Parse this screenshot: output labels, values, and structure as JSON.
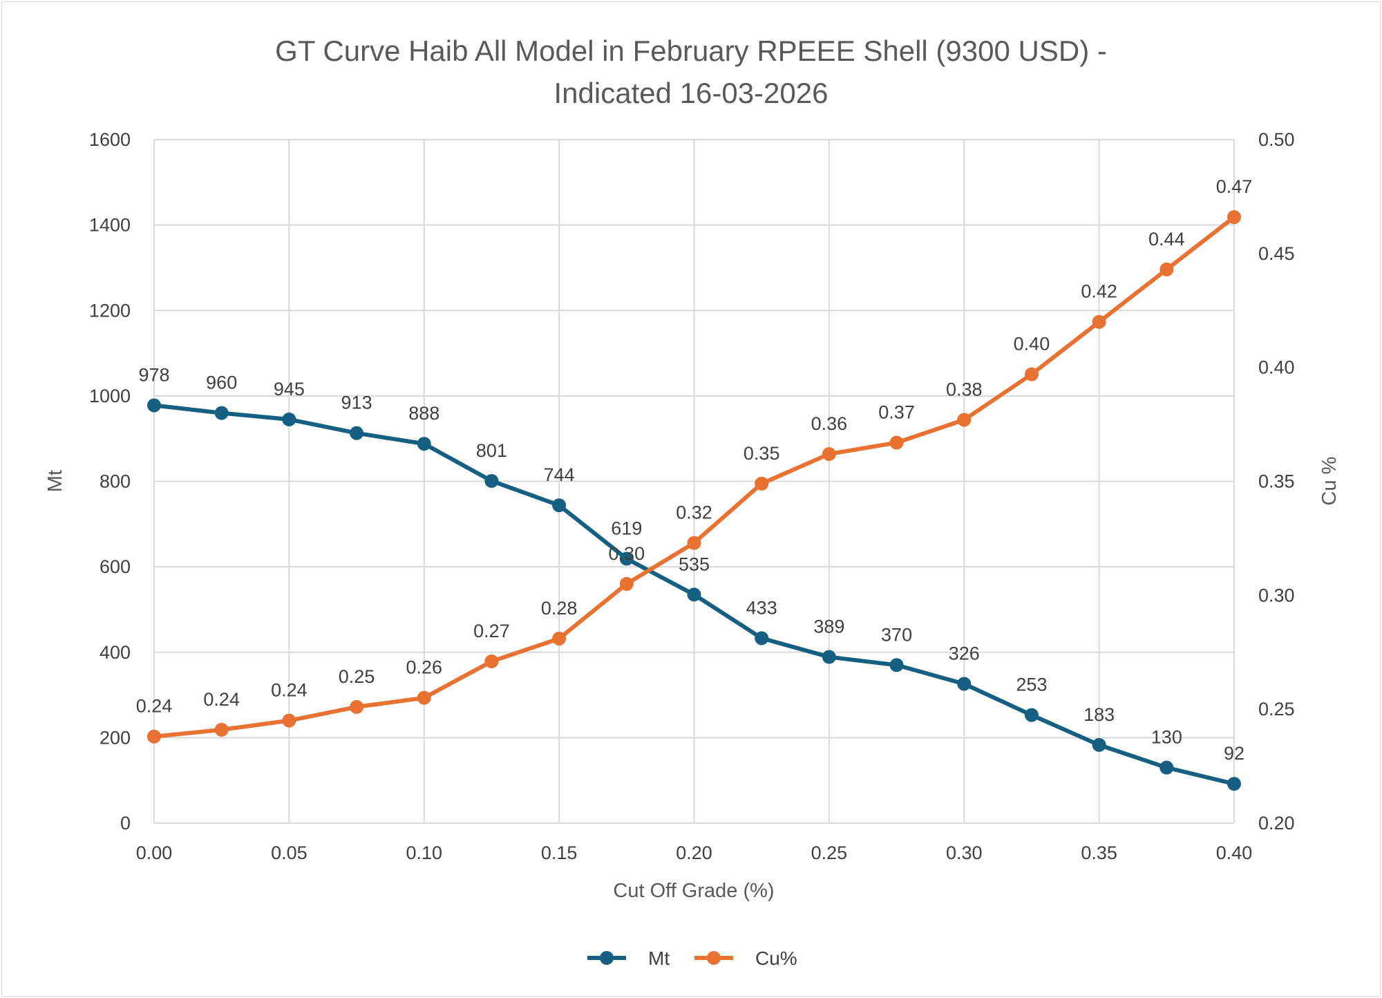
{
  "chart_data": {
    "type": "line",
    "title_lines": [
      "GT Curve Haib All Model in February RPEEE Shell (9300 USD) -",
      "Indicated 16-03-2026"
    ],
    "xlabel": "Cut Off Grade (%)",
    "ylabel": "Mt",
    "y2label": "Cu %",
    "x": [
      0.0,
      0.025,
      0.05,
      0.075,
      0.1,
      0.125,
      0.15,
      0.175,
      0.2,
      0.225,
      0.25,
      0.275,
      0.3,
      0.325,
      0.35,
      0.375,
      0.4
    ],
    "xlim": [
      0,
      0.4
    ],
    "xticks": [
      "0.00",
      "0.05",
      "0.10",
      "0.15",
      "0.20",
      "0.25",
      "0.30",
      "0.35",
      "0.40"
    ],
    "ylim": [
      0,
      1600
    ],
    "yticks": [
      "0",
      "200",
      "400",
      "600",
      "800",
      "1000",
      "1200",
      "1400",
      "1600"
    ],
    "y2lim": [
      0.2,
      0.5
    ],
    "y2ticks": [
      "0.20",
      "0.25",
      "0.30",
      "0.35",
      "0.40",
      "0.45",
      "0.50"
    ],
    "grid": true,
    "legend_position": "bottom",
    "series": [
      {
        "name": "Mt",
        "axis": "left",
        "color": "#156082",
        "values": [
          978,
          960,
          945,
          913,
          888,
          801,
          744,
          619,
          535,
          433,
          389,
          370,
          326,
          253,
          183,
          130,
          92
        ],
        "labels": [
          "978",
          "960",
          "945",
          "913",
          "888",
          "801",
          "744",
          "619",
          "535",
          "433",
          "389",
          "370",
          "326",
          "253",
          "183",
          "130",
          "92"
        ]
      },
      {
        "name": "Cu%",
        "axis": "right",
        "color": "#E97132",
        "values": [
          0.238,
          0.241,
          0.245,
          0.251,
          0.255,
          0.271,
          0.281,
          0.305,
          0.323,
          0.349,
          0.362,
          0.367,
          0.377,
          0.397,
          0.42,
          0.443,
          0.466
        ],
        "labels": [
          "0.24",
          "0.24",
          "0.24",
          "0.25",
          "0.26",
          "0.27",
          "0.28",
          "0.30",
          "0.32",
          "0.35",
          "0.36",
          "0.37",
          "0.38",
          "0.40",
          "0.42",
          "0.44",
          "0.47"
        ]
      }
    ]
  }
}
